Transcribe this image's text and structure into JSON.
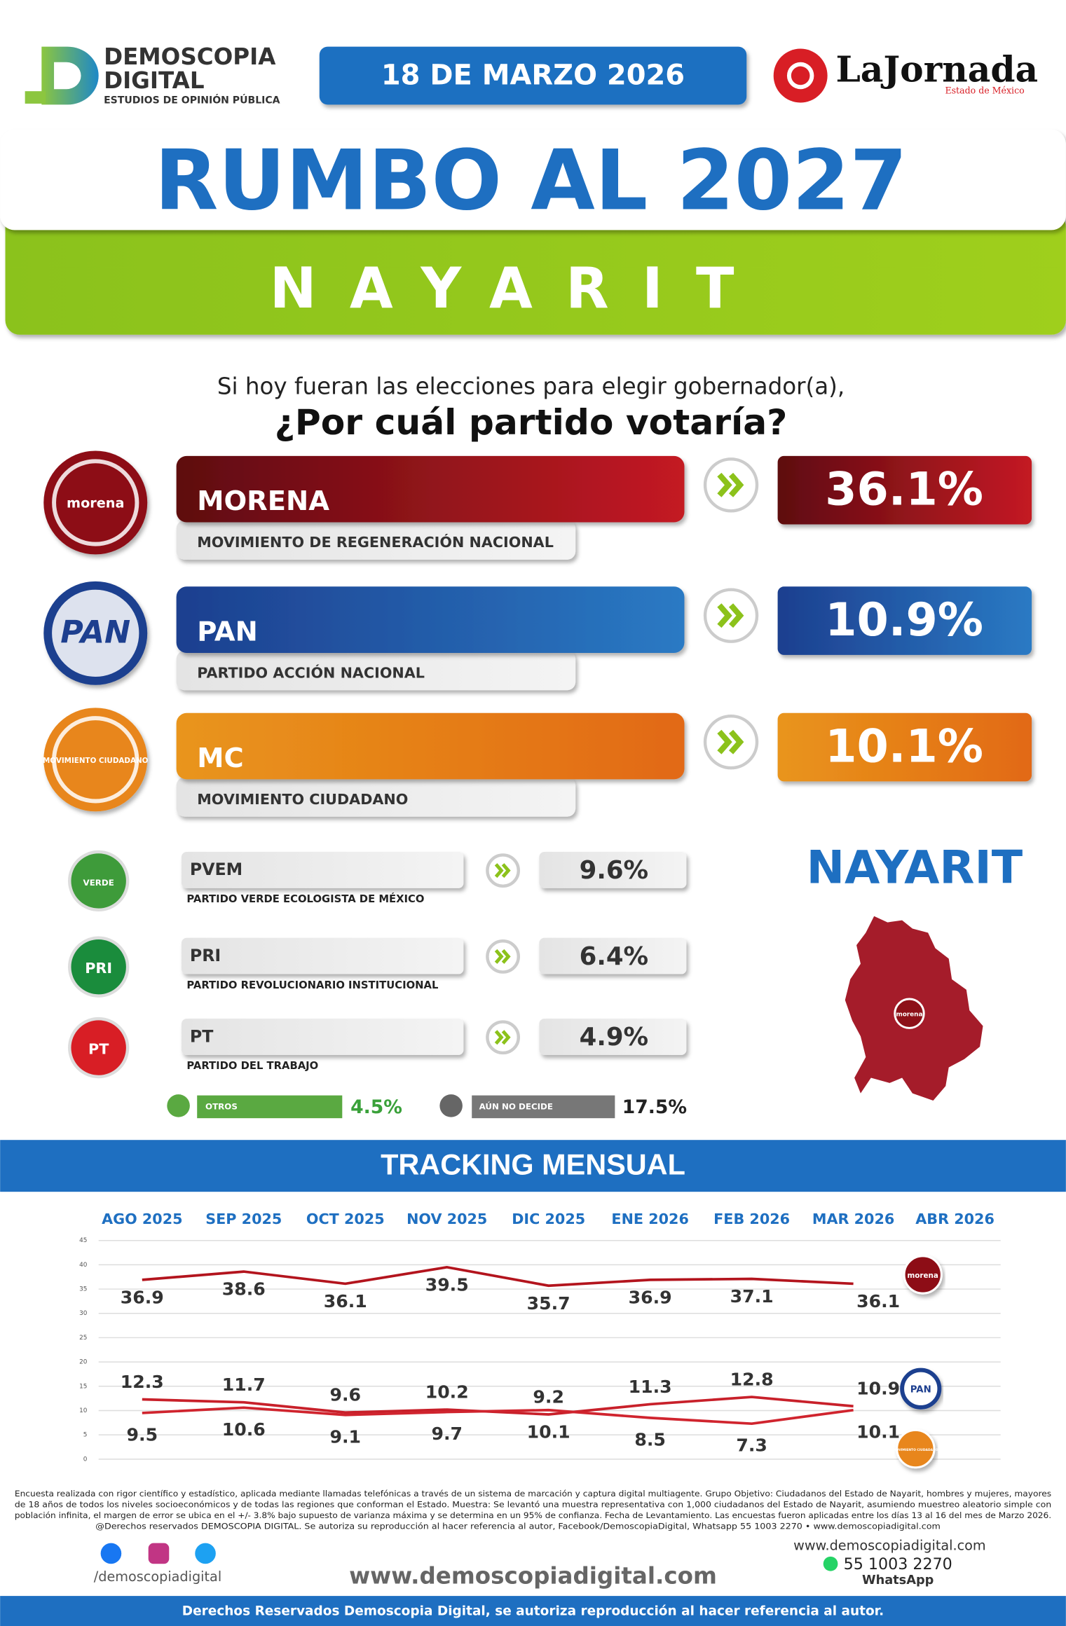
{
  "header": {
    "brand": "DEMOSCOPIA",
    "brand2": "DIGITAL",
    "tagline": "ESTUDIOS DE OPINIÓN PÚBLICA",
    "date": "18 DE MARZO 2026",
    "newspaper": "LaJornada",
    "newspaper_edition": "Estado de México"
  },
  "title": "RUMBO AL 2027",
  "state": "NAYARIT",
  "question": "Si hoy fueran las elecciones para elegir gobernador(a),",
  "question_bold": "¿Por cuál partido votaría?",
  "main_parties": [
    {
      "logo": "morena",
      "name": "MORENA",
      "full_name": "MOVIMIENTO DE REGENERACIÓN NACIONAL",
      "value": "36.1%"
    },
    {
      "logo": "PAN",
      "name": "PAN",
      "full_name": "PARTIDO ACCIÓN NACIONAL",
      "value": "10.9%"
    },
    {
      "logo": "MOVIMIENTO CIUDADANO",
      "name": "MC",
      "full_name": "MOVIMIENTO CIUDADANO",
      "value": "10.1%"
    }
  ],
  "minor_parties": [
    {
      "logo": "VERDE",
      "name": "PVEM",
      "full_name": "PARTIDO VERDE ECOLOGISTA DE MÉXICO",
      "value": "9.6%"
    },
    {
      "logo": "PRI",
      "name": "PRI",
      "full_name": "PARTIDO REVOLUCIONARIO INSTITUCIONAL",
      "value": "6.4%"
    },
    {
      "logo": "PT",
      "name": "PT",
      "full_name": "PARTIDO DEL TRABAJO",
      "value": "4.9%"
    }
  ],
  "others": {
    "label": "OTROS",
    "value": "4.5%"
  },
  "undecided": {
    "label": "AÚN NO DECIDE",
    "value": "17.5%"
  },
  "map_label": "NAYARIT",
  "map_logo": "morena",
  "chart_data": {
    "type": "line",
    "title": "TRACKING MENSUAL",
    "categories": [
      "AGO 2025",
      "SEP 2025",
      "OCT 2025",
      "NOV 2025",
      "DIC 2025",
      "ENE 2026",
      "FEB 2026",
      "MAR 2026",
      "ABR 2026"
    ],
    "ylim": [
      0,
      45
    ],
    "yticks": [
      0,
      5,
      10,
      15,
      20,
      25,
      30,
      35,
      40,
      45
    ],
    "grid": true,
    "series": [
      {
        "name": "morena",
        "color": "#b3141d",
        "values": [
          36.9,
          38.6,
          36.1,
          39.5,
          35.7,
          36.9,
          37.1,
          36.1,
          null
        ]
      },
      {
        "name": "PAN",
        "color": "#c8202a",
        "values": [
          12.3,
          11.7,
          9.6,
          10.2,
          9.2,
          11.3,
          12.8,
          10.9,
          null
        ]
      },
      {
        "name": "MOVIMIENTO CIUDADANO",
        "color": "#d0242e",
        "values": [
          9.5,
          10.6,
          9.1,
          9.7,
          10.1,
          8.5,
          7.3,
          10.1,
          null
        ]
      }
    ]
  },
  "footer": {
    "methodology": [
      "Encuesta realizada con rigor científico y estadístico, aplicada mediante llamadas telefónicas a través de un sistema de marcación y captura digital multiagente. Grupo Objetivo: Ciudadanos del Estado de Nayarit, hombres y mujeres, mayores",
      "de 18 años de todos los niveles socioeconómicos y de todas las regiones que conforman el Estado. Muestra: Se levantó una muestra representativa con 1,000 ciudadanos del Estado de Nayarit, asumiendo muestreo aleatorio simple con",
      "población infinita, el margen de error se ubica en el +/- 3.8% bajo supuesto de varianza máxima y se determina en un 95% de confianza. Fecha de Levantamiento. Las encuestas fueron aplicadas entre los días 13 al 16 del mes de Marzo 2026.",
      "@Derechos reservados DEMOSCOPIA DIGITAL. Se autoriza su reproducción al hacer referencia al autor, Facebook/DemoscopiaDigital, Whatsapp 55 1003 2270 • www.demoscopiadigital.com"
    ],
    "social": "/demoscopiadigital",
    "website": "www.demoscopiadigital.com",
    "contact_web": "www.demoscopiadigital.com",
    "phone": "55 1003 2270",
    "whatsapp": "WhatsApp",
    "rights": "Derechos Reservados Demoscopia Digital, se autoriza reproducción al hacer referencia al autor."
  }
}
